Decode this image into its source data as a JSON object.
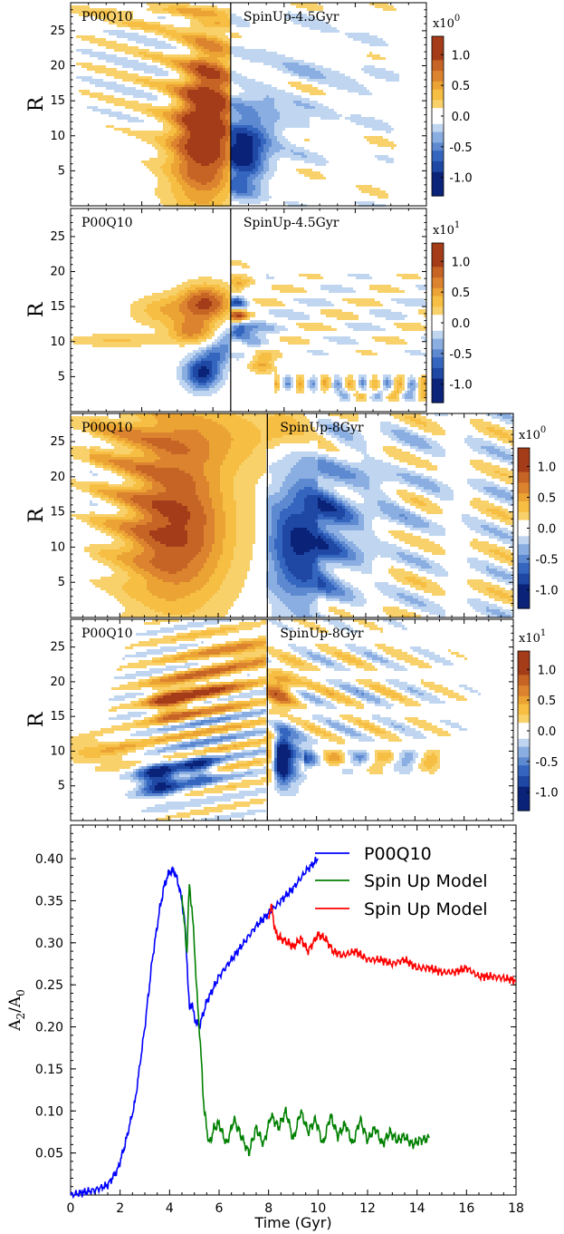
{
  "chart_data": [
    {
      "type": "heatmap",
      "ylabel": "R",
      "yticks": [
        5,
        10,
        15,
        20,
        25
      ],
      "ylim": [
        0,
        29
      ],
      "panel_labels": [
        "P00Q10",
        "SpinUp-4.5Gyr"
      ],
      "colorbar": {
        "exponent_label": "x10",
        "exponent": "0",
        "ticks": [
          "1.0",
          "0.5",
          "0.0",
          "-0.5",
          "-1.0"
        ],
        "vmin": -1.3,
        "vmax": 1.3
      },
      "split_time": 4.5,
      "xlim": [
        0,
        10
      ]
    },
    {
      "type": "heatmap",
      "ylabel": "R",
      "yticks": [
        5,
        10,
        15,
        20,
        25
      ],
      "ylim": [
        0,
        29
      ],
      "panel_labels": [
        "P00Q10",
        "SpinUp-4.5Gyr"
      ],
      "colorbar": {
        "exponent_label": "x10",
        "exponent": "1",
        "ticks": [
          "1.0",
          "0.5",
          "0.0",
          "-0.5",
          "-1.0"
        ],
        "vmin": -1.3,
        "vmax": 1.3
      },
      "split_time": 4.5,
      "xlim": [
        0,
        10
      ]
    },
    {
      "type": "heatmap",
      "ylabel": "R",
      "yticks": [
        5,
        10,
        15,
        20,
        25
      ],
      "ylim": [
        0,
        29
      ],
      "panel_labels": [
        "P00Q10",
        "SpinUp-8Gyr"
      ],
      "colorbar": {
        "exponent_label": "x10",
        "exponent": "0",
        "ticks": [
          "1.0",
          "0.5",
          "0.0",
          "-0.5",
          "-1.0"
        ],
        "vmin": -1.3,
        "vmax": 1.3
      },
      "split_time": 8,
      "xlim": [
        0,
        18
      ]
    },
    {
      "type": "heatmap",
      "ylabel": "R",
      "yticks": [
        5,
        10,
        15,
        20,
        25
      ],
      "ylim": [
        0,
        29
      ],
      "panel_labels": [
        "P00Q10",
        "SpinUp-8Gyr"
      ],
      "colorbar": {
        "exponent_label": "x10",
        "exponent": "1",
        "ticks": [
          "1.0",
          "0.5",
          "0.0",
          "-0.5",
          "-1.0"
        ],
        "vmin": -1.3,
        "vmax": 1.3
      },
      "split_time": 8,
      "xlim": [
        0,
        18
      ]
    },
    {
      "type": "line",
      "xlabel": "Time (Gyr)",
      "ylabel": "A2/A0",
      "xlim": [
        0,
        18
      ],
      "ylim": [
        0,
        0.44
      ],
      "xticks": [
        0,
        2,
        4,
        6,
        8,
        10,
        12,
        14,
        16,
        18
      ],
      "yticks": [
        "0.05",
        "0.10",
        "0.15",
        "0.20",
        "0.25",
        "0.30",
        "0.35",
        "0.40"
      ],
      "legend": "top-right",
      "series": [
        {
          "name": "P00Q10",
          "color": "#0000ff",
          "x": [
            0,
            0.5,
            1.0,
            1.5,
            1.9,
            2.2,
            2.6,
            3.0,
            3.3,
            3.6,
            3.8,
            4.0,
            4.2,
            4.4,
            4.6,
            4.7,
            4.8,
            4.9,
            5.0,
            5.2,
            5.5,
            6.0,
            6.5,
            7.0,
            7.5,
            8.0,
            8.5,
            9.0,
            9.5,
            10.0
          ],
          "y": [
            0.0,
            0.003,
            0.006,
            0.012,
            0.03,
            0.06,
            0.11,
            0.2,
            0.28,
            0.34,
            0.37,
            0.385,
            0.385,
            0.365,
            0.33,
            0.28,
            0.22,
            0.23,
            0.21,
            0.2,
            0.23,
            0.26,
            0.28,
            0.3,
            0.32,
            0.335,
            0.35,
            0.365,
            0.385,
            0.4
          ]
        },
        {
          "name": "Spin Up Model",
          "color": "#008000",
          "x": [
            4.5,
            4.6,
            4.7,
            4.8,
            4.9,
            5.0,
            5.1,
            5.2,
            5.4,
            5.6,
            5.8,
            6.0,
            6.3,
            6.6,
            6.9,
            7.2,
            7.5,
            7.8,
            8.1,
            8.4,
            8.7,
            9.0,
            9.3,
            9.6,
            9.9,
            10.2,
            10.5,
            10.8,
            11.1,
            11.4,
            11.7,
            12.0,
            12.3,
            12.6,
            12.9,
            13.2,
            13.5,
            13.8,
            14.1,
            14.5
          ],
          "y": [
            0.36,
            0.32,
            0.29,
            0.37,
            0.34,
            0.3,
            0.24,
            0.2,
            0.1,
            0.06,
            0.08,
            0.085,
            0.06,
            0.09,
            0.07,
            0.05,
            0.08,
            0.06,
            0.095,
            0.08,
            0.1,
            0.065,
            0.1,
            0.075,
            0.09,
            0.06,
            0.095,
            0.07,
            0.085,
            0.06,
            0.09,
            0.065,
            0.08,
            0.06,
            0.075,
            0.065,
            0.07,
            0.06,
            0.065,
            0.068
          ]
        },
        {
          "name": "Spin Up Model",
          "color": "#ff0000",
          "x": [
            8.0,
            8.1,
            8.3,
            8.5,
            8.8,
            9.0,
            9.3,
            9.6,
            10.0,
            10.3,
            10.6,
            11.0,
            11.5,
            12.0,
            12.5,
            13.0,
            13.5,
            14.0,
            14.5,
            15.0,
            15.5,
            16.0,
            16.5,
            17.0,
            17.5,
            18.0
          ],
          "y": [
            0.33,
            0.345,
            0.31,
            0.305,
            0.3,
            0.295,
            0.305,
            0.29,
            0.31,
            0.305,
            0.29,
            0.285,
            0.29,
            0.28,
            0.28,
            0.275,
            0.28,
            0.27,
            0.27,
            0.265,
            0.265,
            0.27,
            0.26,
            0.26,
            0.258,
            0.255
          ]
        }
      ]
    }
  ]
}
